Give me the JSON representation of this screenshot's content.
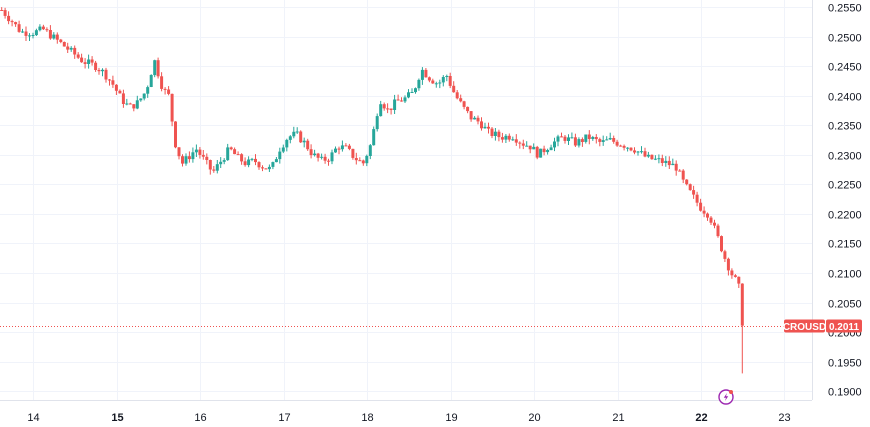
{
  "chart_data": {
    "type": "candlestick",
    "symbol": "CROUSD",
    "last_price": "0.2011",
    "ylim": [
      0.1885,
      0.2562
    ],
    "y_ticks": [
      "0.2550",
      "0.2500",
      "0.2450",
      "0.2400",
      "0.2350",
      "0.2300",
      "0.2250",
      "0.2200",
      "0.2150",
      "0.2100",
      "0.2050",
      "0.2000",
      "0.1950",
      "0.1900"
    ],
    "x_ticks": [
      {
        "label": "14",
        "bold": false
      },
      {
        "label": "15",
        "bold": true
      },
      {
        "label": "16",
        "bold": false
      },
      {
        "label": "17",
        "bold": false
      },
      {
        "label": "18",
        "bold": false
      },
      {
        "label": "19",
        "bold": false
      },
      {
        "label": "20",
        "bold": false
      },
      {
        "label": "21",
        "bold": false
      },
      {
        "label": "22",
        "bold": true
      },
      {
        "label": "23",
        "bold": false
      }
    ],
    "x_range_days": [
      13.6,
      23.33
    ],
    "price_path": [
      [
        13.62,
        0.2545
      ],
      [
        13.75,
        0.2525
      ],
      [
        13.85,
        0.2508
      ],
      [
        14.0,
        0.2507
      ],
      [
        14.12,
        0.2512
      ],
      [
        14.3,
        0.2492
      ],
      [
        14.45,
        0.2475
      ],
      [
        14.6,
        0.2458
      ],
      [
        14.75,
        0.245
      ],
      [
        14.85,
        0.2438
      ],
      [
        14.95,
        0.242
      ],
      [
        15.05,
        0.2395
      ],
      [
        15.15,
        0.238
      ],
      [
        15.25,
        0.2388
      ],
      [
        15.35,
        0.2408
      ],
      [
        15.45,
        0.246
      ],
      [
        15.55,
        0.2412
      ],
      [
        15.62,
        0.24
      ],
      [
        15.7,
        0.232
      ],
      [
        15.78,
        0.2285
      ],
      [
        15.85,
        0.2295
      ],
      [
        15.95,
        0.231
      ],
      [
        16.05,
        0.229
      ],
      [
        16.15,
        0.227
      ],
      [
        16.25,
        0.229
      ],
      [
        16.35,
        0.231
      ],
      [
        16.45,
        0.2295
      ],
      [
        16.55,
        0.2285
      ],
      [
        16.65,
        0.229
      ],
      [
        16.75,
        0.228
      ],
      [
        16.85,
        0.2275
      ],
      [
        16.95,
        0.231
      ],
      [
        17.05,
        0.233
      ],
      [
        17.15,
        0.2335
      ],
      [
        17.25,
        0.232
      ],
      [
        17.35,
        0.23
      ],
      [
        17.45,
        0.229
      ],
      [
        17.55,
        0.2295
      ],
      [
        17.65,
        0.2315
      ],
      [
        17.75,
        0.231
      ],
      [
        17.85,
        0.2295
      ],
      [
        17.95,
        0.2285
      ],
      [
        18.05,
        0.232
      ],
      [
        18.15,
        0.2395
      ],
      [
        18.25,
        0.2375
      ],
      [
        18.35,
        0.239
      ],
      [
        18.45,
        0.2395
      ],
      [
        18.55,
        0.2405
      ],
      [
        18.65,
        0.2445
      ],
      [
        18.75,
        0.243
      ],
      [
        18.85,
        0.242
      ],
      [
        18.95,
        0.2435
      ],
      [
        19.05,
        0.2402
      ],
      [
        19.15,
        0.238
      ],
      [
        19.25,
        0.2362
      ],
      [
        19.35,
        0.2355
      ],
      [
        19.45,
        0.2338
      ],
      [
        19.6,
        0.233
      ],
      [
        19.75,
        0.2332
      ],
      [
        19.85,
        0.232
      ],
      [
        19.95,
        0.2315
      ],
      [
        20.05,
        0.23
      ],
      [
        20.2,
        0.2318
      ],
      [
        20.35,
        0.233
      ],
      [
        20.5,
        0.232
      ],
      [
        20.65,
        0.233
      ],
      [
        20.8,
        0.232
      ],
      [
        20.9,
        0.2325
      ],
      [
        21.05,
        0.2318
      ],
      [
        21.2,
        0.231
      ],
      [
        21.35,
        0.2295
      ],
      [
        21.5,
        0.229
      ],
      [
        21.6,
        0.2285
      ],
      [
        21.7,
        0.228
      ],
      [
        21.8,
        0.225
      ],
      [
        21.9,
        0.223
      ],
      [
        22.0,
        0.221
      ],
      [
        22.1,
        0.2198
      ],
      [
        22.2,
        0.216
      ],
      [
        22.3,
        0.212
      ],
      [
        22.38,
        0.2095
      ],
      [
        22.45,
        0.208
      ],
      [
        22.5,
        0.2011
      ]
    ],
    "grid": true,
    "colors": {
      "up": "#26a69a",
      "down": "#ef5350",
      "grid": "#f0f3fa",
      "axis": "#e0e3eb"
    }
  }
}
